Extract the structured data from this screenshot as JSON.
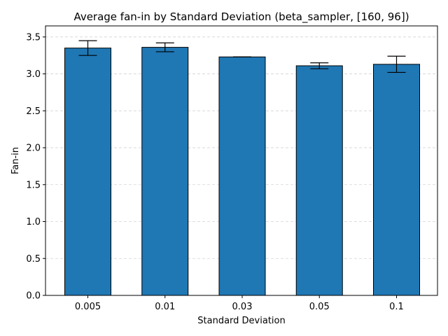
{
  "chart_data": {
    "type": "bar",
    "title": "Average fan-in by Standard Deviation (beta_sampler, [160, 96])",
    "xlabel": "Standard Deviation",
    "ylabel": "Fan-in",
    "categories": [
      "0.005",
      "0.01",
      "0.03",
      "0.05",
      "0.1"
    ],
    "values": [
      3.35,
      3.36,
      3.23,
      3.11,
      3.13
    ],
    "errors": [
      0.1,
      0.06,
      0.0,
      0.04,
      0.11
    ],
    "ylim": [
      0,
      3.65
    ],
    "yticks": [
      0.0,
      0.5,
      1.0,
      1.5,
      2.0,
      2.5,
      3.0,
      3.5
    ],
    "ytick_labels": [
      "0.0",
      "0.5",
      "1.0",
      "1.5",
      "2.0",
      "2.5",
      "3.0",
      "3.5"
    ],
    "grid": "y, dashed",
    "legend": "none",
    "bar_color": "#1f77b4",
    "edge_color": "#000000"
  }
}
